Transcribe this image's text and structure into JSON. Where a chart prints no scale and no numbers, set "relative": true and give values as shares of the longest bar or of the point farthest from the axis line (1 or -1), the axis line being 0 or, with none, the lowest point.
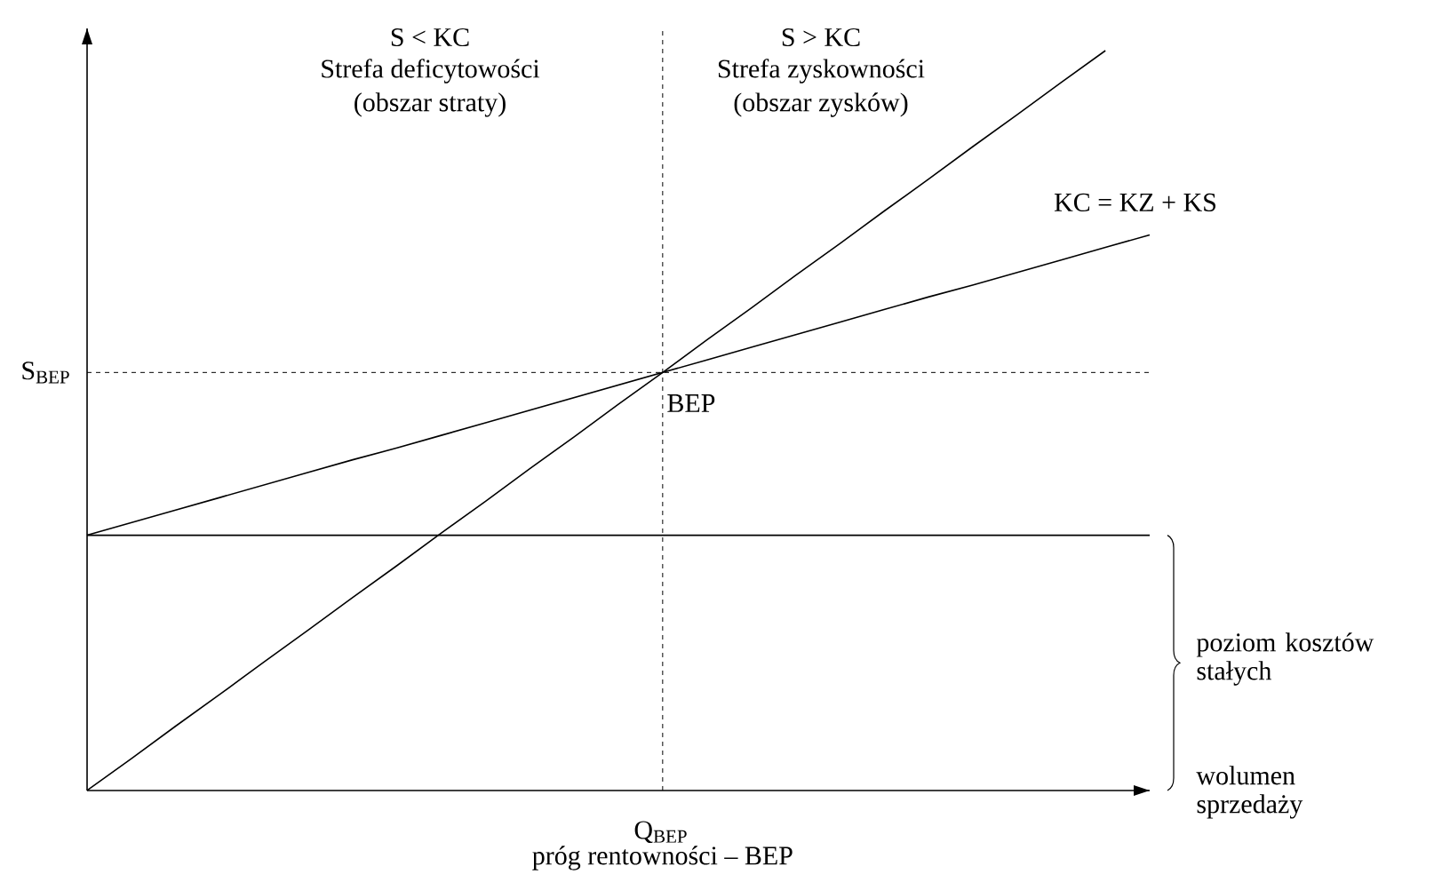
{
  "chart_data": {
    "type": "line",
    "relative": true,
    "categories": [
      null,
      null,
      null,
      null,
      null,
      null,
      null,
      null,
      null,
      null,
      null,
      null,
      null,
      null,
      null,
      null,
      null,
      null,
      null,
      null,
      null,
      null,
      null,
      null,
      null
    ],
    "series": [
      {
        "color": "#000000",
        "values": [
          0,
          0.043,
          0.087,
          0.13,
          0.174,
          0.217,
          0.261,
          0.304,
          0.348,
          0.391,
          0.435,
          0.478,
          0.522,
          0.565,
          0.609,
          0.652,
          0.696,
          0.739,
          0.783,
          0.826,
          0.87,
          0.913,
          0.957,
          1.0,
          null
        ]
      },
      {
        "name": "KC = KZ + KS",
        "color": "#000000",
        "values": [
          0.345,
          0.362,
          0.379,
          0.396,
          0.413,
          0.43,
          0.447,
          0.463,
          0.48,
          0.497,
          0.514,
          0.531,
          0.548,
          0.565,
          0.582,
          0.599,
          0.616,
          0.633,
          0.65,
          0.667,
          0.683,
          0.7,
          0.717,
          0.734,
          0.751
        ]
      }
    ],
    "ref_lines": [
      {
        "axis": "y",
        "value": 0.565,
        "label": "S$_{BEP}$",
        "line_style": "dashed"
      },
      {
        "axis": "y",
        "value": 0.345,
        "line_style": "solid",
        "color": "#000000"
      }
    ],
    "xlabel": "próg rentowności – BEP",
    "annotations": [
      "S < KC",
      "Strefa deficytowości",
      "(obszar straty)",
      "S > KC",
      "Strefa zyskowności",
      "(obszar zysków)",
      "BEP",
      "Q$_{BEP}$",
      "poziom kosztów stałych",
      "wolumen sprzedaży"
    ]
  }
}
